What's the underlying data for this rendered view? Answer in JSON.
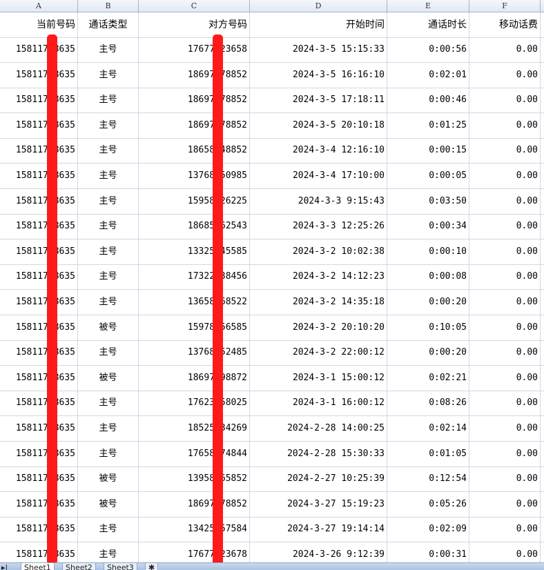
{
  "columns": [
    "A",
    "B",
    "C",
    "D",
    "E",
    "F"
  ],
  "headers": [
    "当前号码",
    "通话类型",
    "对方号码",
    "开始时间",
    "通话时长",
    "移动话费"
  ],
  "rows": [
    [
      "15811758635",
      "主号",
      "17677123658",
      "2024-3-5 15:15:33",
      "0:00:56",
      "0.00"
    ],
    [
      "15811758635",
      "主号",
      "18697378852",
      "2024-3-5 16:16:10",
      "0:02:01",
      "0.00"
    ],
    [
      "15811758635",
      "主号",
      "18697378852",
      "2024-3-5 17:18:11",
      "0:00:46",
      "0.00"
    ],
    [
      "15811758635",
      "主号",
      "18697378852",
      "2024-3-5 20:10:18",
      "0:01:25",
      "0.00"
    ],
    [
      "15811758635",
      "主号",
      "18658148852",
      "2024-3-4 12:16:10",
      "0:00:15",
      "0.00"
    ],
    [
      "15811758635",
      "主号",
      "13768250985",
      "2024-3-4 17:10:00",
      "0:00:05",
      "0.00"
    ],
    [
      "15811758635",
      "主号",
      "15958426225",
      "2024-3-3 9:15:43",
      "0:03:50",
      "0.00"
    ],
    [
      "15811758635",
      "主号",
      "18685562543",
      "2024-3-3 12:25:26",
      "0:00:34",
      "0.00"
    ],
    [
      "15811758635",
      "主号",
      "13325545585",
      "2024-3-2 10:02:38",
      "0:00:10",
      "0.00"
    ],
    [
      "15811758635",
      "主号",
      "17322538456",
      "2024-3-2 14:12:23",
      "0:00:08",
      "0.00"
    ],
    [
      "15811758635",
      "主号",
      "13658568522",
      "2024-3-2 14:35:18",
      "0:00:20",
      "0.00"
    ],
    [
      "15811758635",
      "被号",
      "15978156585",
      "2024-3-2 20:10:20",
      "0:10:05",
      "0.00"
    ],
    [
      "15811758635",
      "主号",
      "13768252485",
      "2024-3-2 22:00:12",
      "0:00:20",
      "0.00"
    ],
    [
      "15811758635",
      "被号",
      "18697398872",
      "2024-3-1 15:00:12",
      "0:02:21",
      "0.00"
    ],
    [
      "15811758635",
      "主号",
      "17623558025",
      "2024-3-1 16:00:12",
      "0:08:26",
      "0.00"
    ],
    [
      "15811758635",
      "主号",
      "18525534269",
      "2024-2-28 14:00:25",
      "0:02:14",
      "0.00"
    ],
    [
      "15811758635",
      "主号",
      "17658474844",
      "2024-2-28 15:30:33",
      "0:01:05",
      "0.00"
    ],
    [
      "15811758635",
      "被号",
      "13958265852",
      "2024-2-27 10:25:39",
      "0:12:54",
      "0.00"
    ],
    [
      "15811758635",
      "被号",
      "18697378852",
      "2024-3-27 15:19:23",
      "0:05:26",
      "0.00"
    ],
    [
      "15811758635",
      "主号",
      "13425557584",
      "2024-3-27 19:14:14",
      "0:02:09",
      "0.00"
    ],
    [
      "15811758635",
      "主号",
      "17677123678",
      "2024-3-26 9:12:39",
      "0:00:31",
      "0.00"
    ]
  ],
  "sheets": [
    "Sheet1",
    "Sheet2",
    "Sheet3"
  ],
  "colors": {
    "redaction": "#ff1a1a",
    "grid": "#d0d7e5",
    "header_bg": "#e2e9f3"
  }
}
